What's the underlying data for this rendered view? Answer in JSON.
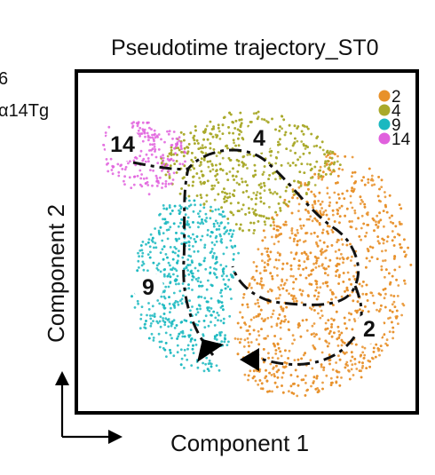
{
  "side_text": [
    "6",
    "α14Tg"
  ],
  "chart_data": {
    "type": "scatter",
    "title": "Pseudotime trajectory_ST0",
    "xlabel": "Component 1",
    "ylabel": "Component 2",
    "grid": false,
    "axis_ticks": false,
    "legend_placement": "top-right",
    "series": [
      {
        "name": "2",
        "color": "#E8912A",
        "region": "right-lower"
      },
      {
        "name": "4",
        "color": "#A9A92A",
        "region": "upper-middle"
      },
      {
        "name": "9",
        "color": "#1AB8C0",
        "region": "left-middle"
      },
      {
        "name": "14",
        "color": "#E060DD",
        "region": "upper-left"
      }
    ],
    "cluster_labels": [
      "14",
      "4",
      "9",
      "2"
    ],
    "trajectory": "dashed black path with two arrowheads"
  }
}
